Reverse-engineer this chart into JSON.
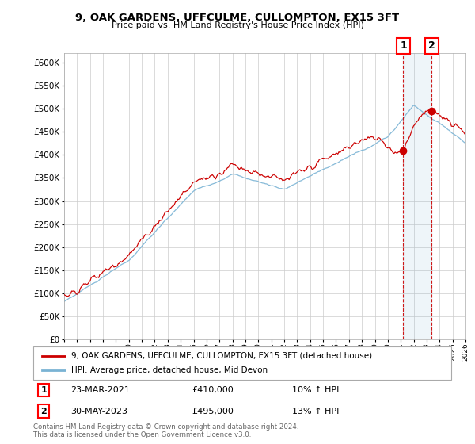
{
  "title": "9, OAK GARDENS, UFFCULME, CULLOMPTON, EX15 3FT",
  "subtitle": "Price paid vs. HM Land Registry's House Price Index (HPI)",
  "legend_line1": "9, OAK GARDENS, UFFCULME, CULLOMPTON, EX15 3FT (detached house)",
  "legend_line2": "HPI: Average price, detached house, Mid Devon",
  "marker1_date": "23-MAR-2021",
  "marker1_price": 410000,
  "marker1_label": "10% ↑ HPI",
  "marker2_date": "30-MAY-2023",
  "marker2_price": 495000,
  "marker2_label": "13% ↑ HPI",
  "footnote": "Contains HM Land Registry data © Crown copyright and database right 2024.\nThis data is licensed under the Open Government Licence v3.0.",
  "hpi_color": "#7ab3d4",
  "price_color": "#cc0000",
  "vline_color": "#cc0000",
  "ylim_min": 0,
  "ylim_max": 620000,
  "start_year": 1995,
  "end_year": 2026,
  "marker1_x": 2021.2,
  "marker2_x": 2023.4,
  "background_color": "#ffffff",
  "grid_color": "#cccccc"
}
